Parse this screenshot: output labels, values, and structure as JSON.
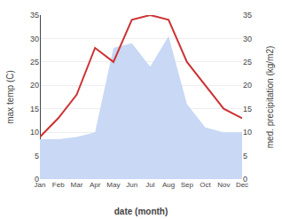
{
  "chart_data": {
    "type": "area",
    "categories": [
      "Jan",
      "Feb",
      "Mar",
      "Apr",
      "May",
      "Jun",
      "Jul",
      "Aug",
      "Sep",
      "Oct",
      "Nov",
      "Dec"
    ],
    "series": [
      {
        "type": "area",
        "color": "#c8d8f5",
        "values": [
          8.5,
          8.5,
          9,
          10,
          28,
          29,
          24,
          30.5,
          16,
          11,
          10,
          10
        ]
      },
      {
        "type": "line",
        "color": "#cc3333",
        "axis": "y2",
        "values": [
          9,
          13,
          18,
          28,
          25,
          34,
          35,
          34,
          25,
          20,
          15,
          13
        ]
      }
    ],
    "x_label": "date (month)",
    "y_label": "max temp (C)",
    "y2_label": "med. precipitation (kg/m2)",
    "ylim": [
      0,
      35
    ],
    "yticks": [
      0,
      5,
      10,
      15,
      20,
      25,
      30,
      35
    ],
    "y2lim": [
      0,
      35
    ],
    "y2ticks": [
      0,
      5,
      10,
      15,
      20,
      25,
      30,
      35
    ],
    "grid": true
  }
}
